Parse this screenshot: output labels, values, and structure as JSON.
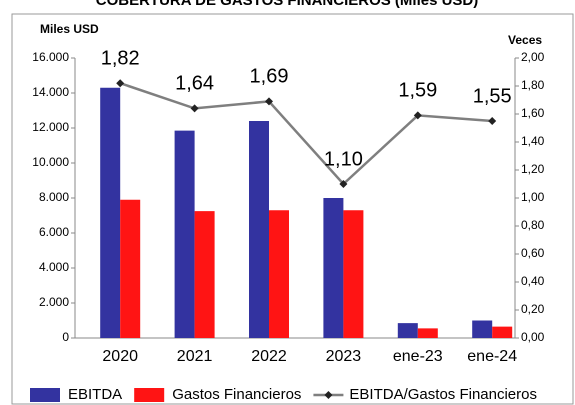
{
  "chart_data": {
    "type": "bar-line",
    "title": "COBERTURA DE GASTOS FINANCIEROS (Miles USD)",
    "y_label": "Miles USD",
    "y2_label": "Veces",
    "categories": [
      "2020",
      "2021",
      "2022",
      "2023",
      "ene-23",
      "ene-24"
    ],
    "series": [
      {
        "name": "EBITDA",
        "color": "#3333a0",
        "type": "bar",
        "values": [
          14300,
          11850,
          12400,
          8000,
          850,
          1000
        ]
      },
      {
        "name": "Gastos Financieros",
        "color": "#ff1414",
        "type": "bar",
        "values": [
          7900,
          7250,
          7300,
          7300,
          550,
          650
        ]
      },
      {
        "name": "EBITDA/Gastos Financieros",
        "color": "#7f7f7f",
        "type": "line",
        "axis": "y2",
        "values": [
          1.82,
          1.64,
          1.69,
          1.1,
          1.59,
          1.55
        ],
        "value_labels": [
          "1,82",
          "1,64",
          "1,69",
          "1,10",
          "1,59",
          "1,55"
        ]
      }
    ],
    "ylim": [
      0,
      16000
    ],
    "yticks": [
      0,
      {
        "value": 2000,
        "label": "2.000"
      },
      {
        "value": 4000,
        "label": "4.000"
      },
      {
        "value": 6000,
        "label": "6.000"
      },
      {
        "value": 8000,
        "label": "8.000"
      },
      {
        "value": 10000,
        "label": "10.000"
      },
      {
        "value": 12000,
        "label": "12.000"
      },
      {
        "value": 14000,
        "label": "14.000"
      },
      {
        "value": 16000,
        "label": "16.000"
      }
    ],
    "y2lim": [
      0,
      2
    ],
    "y2ticks": [
      {
        "value": 0,
        "label": "0,00"
      },
      {
        "value": 0.2,
        "label": "0,20"
      },
      {
        "value": 0.4,
        "label": "0,40"
      },
      {
        "value": 0.6,
        "label": "0,60"
      },
      {
        "value": 0.8,
        "label": "0,80"
      },
      {
        "value": 1.0,
        "label": "1,00"
      },
      {
        "value": 1.2,
        "label": "1,20"
      },
      {
        "value": 1.4,
        "label": "1,40"
      },
      {
        "value": 1.6,
        "label": "1,60"
      },
      {
        "value": 1.8,
        "label": "1,80"
      },
      {
        "value": 2.0,
        "label": "2,00"
      }
    ],
    "legend": "bottom"
  }
}
